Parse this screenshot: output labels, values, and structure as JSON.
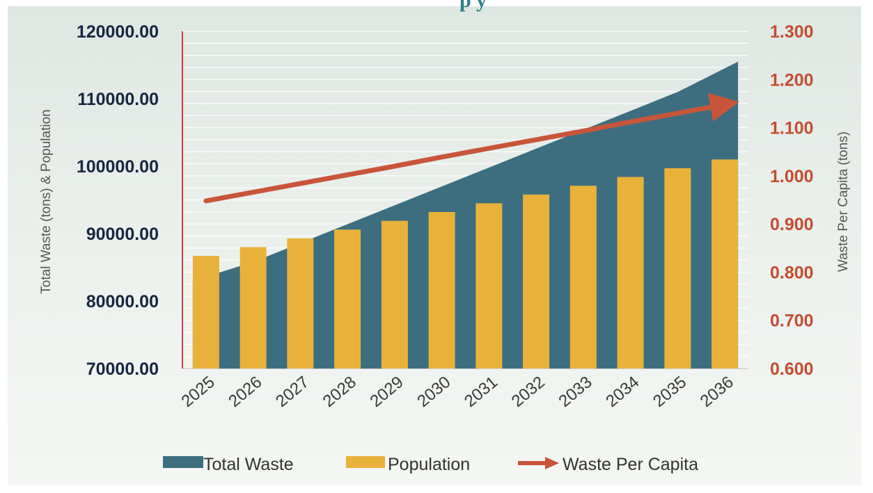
{
  "chart_data": {
    "type": "bar",
    "title": "",
    "partial_title_visible": "p          y",
    "categories": [
      "2025",
      "2026",
      "2027",
      "2028",
      "2029",
      "2030",
      "2031",
      "2032",
      "2033",
      "2034",
      "2035",
      "2036"
    ],
    "series": [
      {
        "name": "Total Waste",
        "kind": "area",
        "axis": "left",
        "color": "#3d6e80",
        "values": [
          83000,
          85800,
          88600,
          91400,
          94200,
          97000,
          99800,
          102600,
          105400,
          108200,
          111000,
          115500
        ]
      },
      {
        "name": "Population",
        "kind": "bar",
        "axis": "left",
        "color": "#e8b23a",
        "values": [
          86700,
          88000,
          89300,
          90600,
          91900,
          93200,
          94500,
          95800,
          97100,
          98400,
          99700,
          101000
        ]
      },
      {
        "name": "Waste Per Capita",
        "kind": "line",
        "axis": "right",
        "color": "#c8553a",
        "values": [
          0.948,
          0.966,
          0.984,
          1.002,
          1.02,
          1.039,
          1.057,
          1.075,
          1.093,
          1.112,
          1.13,
          1.148
        ]
      }
    ],
    "y_left": {
      "label": "Total Waste (tons) & Population",
      "min": 70000,
      "max": 120000,
      "ticks": [
        "70000.00",
        "80000.00",
        "90000.00",
        "100000.00",
        "110000.00",
        "120000.00"
      ]
    },
    "y_right": {
      "label": "Waste Per Capita (tons)",
      "min": 0.6,
      "max": 1.3,
      "ticks": [
        "0.600",
        "0.700",
        "0.800",
        "0.900",
        "1.000",
        "1.100",
        "1.200",
        "1.300"
      ]
    },
    "grid": true,
    "legend_position": "bottom",
    "legend": [
      "Total Waste",
      "Population",
      "Waste Per Capita"
    ]
  }
}
